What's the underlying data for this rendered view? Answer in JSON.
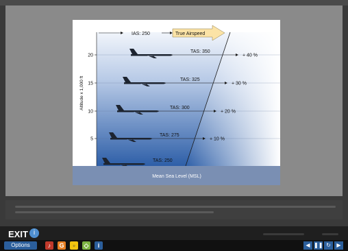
{
  "figure": {
    "ias_label": "IAS: 250",
    "true_airspeed_label": "True Airspeed",
    "axis_label": "Altitude x 1,000 ft",
    "ground_label": "Mean Sea Level (MSL)",
    "levels": [
      {
        "alt": "20",
        "tas": "TAS: 350",
        "pct": "+ 40 %"
      },
      {
        "alt": "15",
        "tas": "TAS: 325",
        "pct": "+ 30 %"
      },
      {
        "alt": "10",
        "tas": "TAS: 300",
        "pct": "+ 20 %"
      },
      {
        "alt": "5",
        "tas": "TAS: 275",
        "pct": "+ 10 %"
      },
      {
        "alt": "",
        "tas": "TAS: 250",
        "pct": ""
      }
    ]
  },
  "player": {
    "exit_label": "EXIT",
    "options_label": "Options",
    "info_glyph": "i",
    "tools": [
      "speaker-icon",
      "glossary-icon",
      "notes-icon",
      "chat-icon",
      "info-icon"
    ],
    "nav": [
      "previous-icon",
      "pause-icon",
      "replay-icon",
      "next-icon"
    ]
  },
  "colors": {
    "sky_top": "#eaf1fb",
    "sky_bottom": "#2f5fa8",
    "ground": "#7a8fb3",
    "arrow_fill": "#fbe3a6",
    "accent": "#2b5e9b"
  }
}
